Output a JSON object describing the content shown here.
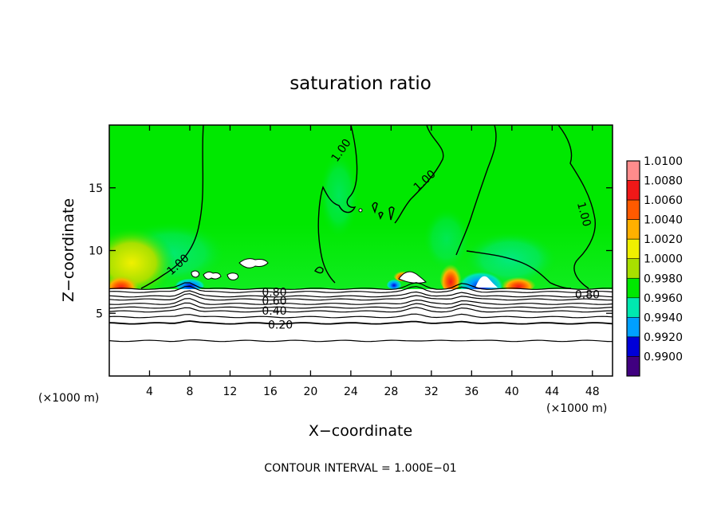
{
  "chart_data": {
    "type": "heatmap",
    "title": "saturation ratio",
    "xlabel": "X−coordinate",
    "ylabel": "Z−coordinate",
    "x_unit": "(×1000 m)",
    "y_unit": "(×1000 m)",
    "xlim": [
      0,
      50
    ],
    "ylim": [
      0,
      20
    ],
    "x_ticks": [
      4,
      8,
      12,
      16,
      20,
      24,
      28,
      32,
      36,
      40,
      44,
      48
    ],
    "y_ticks": [
      5,
      10,
      15
    ],
    "footer": "CONTOUR INTERVAL = 1.000E−01",
    "colorbar": {
      "levels": [
        "1.0100",
        "1.0080",
        "1.0060",
        "1.0040",
        "1.0020",
        "1.0000",
        "0.9980",
        "0.9960",
        "0.9940",
        "0.9920",
        "0.9900"
      ],
      "colors": [
        "#ff8c8c",
        "#f01818",
        "#ff5a00",
        "#ffb000",
        "#f0f000",
        "#a8e000",
        "#00e800",
        "#00e8b0",
        "#00a0ff",
        "#0000d8",
        "#400080"
      ]
    },
    "contour_labels": [
      {
        "text": "1.00",
        "x": 6.8,
        "z": 8.9,
        "angle": -42
      },
      {
        "text": "1.00",
        "x": 23.0,
        "z": 18.0,
        "angle": -55
      },
      {
        "text": "1.00",
        "x": 31.3,
        "z": 15.6,
        "angle": -42
      },
      {
        "text": "1.00",
        "x": 47.2,
        "z": 12.9,
        "angle": 75
      },
      {
        "text": "0.80",
        "x": 16.4,
        "z": 6.7,
        "angle": 0
      },
      {
        "text": "0.60",
        "x": 16.4,
        "z": 6.0,
        "angle": 0
      },
      {
        "text": "0.40",
        "x": 16.4,
        "z": 5.2,
        "angle": 0
      },
      {
        "text": "0.20",
        "x": 17.0,
        "z": 4.1,
        "angle": 0
      },
      {
        "text": "0.80",
        "x": 47.5,
        "z": 6.5,
        "angle": 0
      }
    ],
    "low_contours_z": [
      6.95,
      6.7,
      6.35,
      6.1,
      5.75,
      5.45,
      5.15,
      4.7,
      4.2,
      2.8
    ]
  }
}
